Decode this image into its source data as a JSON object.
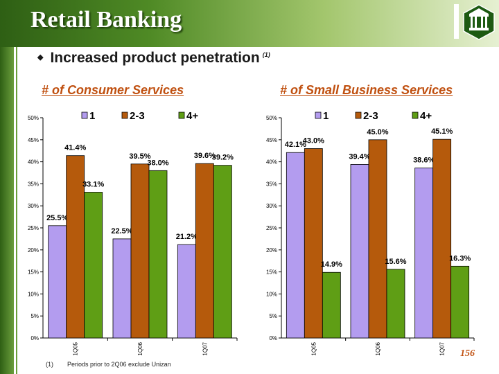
{
  "header": {
    "title": "Retail Banking"
  },
  "bullet": {
    "text": "Increased product penetration",
    "footnote_marker": "(1)"
  },
  "footnote": {
    "number": "(1)",
    "text": "Periods prior to 2Q06 exclude Unizan"
  },
  "page_number": "156",
  "colors": {
    "series_1": "#b39cef",
    "series_2_3": "#b55a0c",
    "series_4_plus": "#5f9e15",
    "accent": "#c05010"
  },
  "chart_data": [
    {
      "type": "bar",
      "title": "# of Consumer Services",
      "categories": [
        "1Q05",
        "1Q06",
        "1Q07"
      ],
      "series": [
        {
          "name": "1",
          "values": [
            25.5,
            22.5,
            21.2
          ],
          "labels": [
            "25.5%",
            "22.5%",
            "21.2%"
          ]
        },
        {
          "name": "2-3",
          "values": [
            41.4,
            39.5,
            39.6
          ],
          "labels": [
            "41.4%",
            "39.5%",
            "39.6%"
          ]
        },
        {
          "name": "4+",
          "values": [
            33.1,
            38.0,
            39.2
          ],
          "labels": [
            "33.1%",
            "38.0%",
            "39.2%"
          ]
        }
      ],
      "ylim": [
        0,
        50
      ],
      "yticks": [
        "0%",
        "5%",
        "10%",
        "15%",
        "20%",
        "25%",
        "30%",
        "35%",
        "40%",
        "45%",
        "50%"
      ],
      "legend": "top"
    },
    {
      "type": "bar",
      "title": "# of Small Business Services",
      "categories": [
        "1Q05",
        "1Q06",
        "1Q07"
      ],
      "series": [
        {
          "name": "1",
          "values": [
            42.1,
            39.4,
            38.6
          ],
          "labels": [
            "42.1%",
            "39.4%",
            "38.6%"
          ]
        },
        {
          "name": "2-3",
          "values": [
            43.0,
            45.0,
            45.1
          ],
          "labels": [
            "43.0%",
            "45.0%",
            "45.1%"
          ]
        },
        {
          "name": "4+",
          "values": [
            14.9,
            15.6,
            16.3
          ],
          "labels": [
            "14.9%",
            "15.6%",
            "16.3%"
          ]
        }
      ],
      "ylim": [
        0,
        50
      ],
      "yticks": [
        "0%",
        "5%",
        "10%",
        "15%",
        "20%",
        "25%",
        "30%",
        "35%",
        "40%",
        "45%",
        "50%"
      ],
      "legend": "top"
    }
  ]
}
